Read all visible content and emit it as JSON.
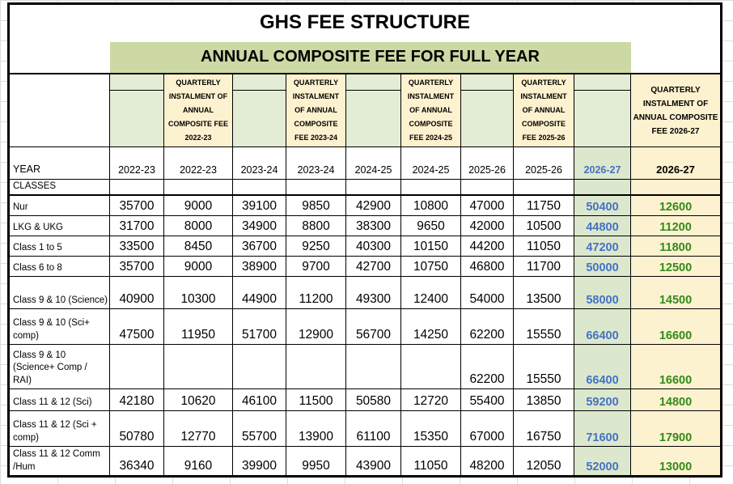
{
  "page": {
    "title": "GHS FEE STRUCTURE",
    "subtitle": "ANNUAL COMPOSITE FEE FOR FULL YEAR"
  },
  "table": {
    "year_row_label": "YEAR",
    "classes_row_label": "CLASSES",
    "columns": [
      {
        "year": "2022-23",
        "quarterly_header": "QUARTERLY INSTALMENT OF ANNUAL COMPOSITE FEE 2022-23"
      },
      {
        "year": "2023-24",
        "quarterly_header": "QUARTERLY INSTALMENT OF ANNUAL COMPOSITE FEE 2023-24"
      },
      {
        "year": "2024-25",
        "quarterly_header": "QUARTERLY INSTALMENT OF ANNUAL COMPOSITE FEE 2024-25"
      },
      {
        "year": "2025-26",
        "quarterly_header": "QUARTERLY INSTALMENT OF ANNUAL COMPOSITE FEE 2025-26"
      },
      {
        "year": "2026-27",
        "quarterly_header": "QUARTERLY INSTALMENT OF ANNUAL COMPOSITE FEE 2026-27"
      }
    ],
    "rows": [
      {
        "label": "Nur",
        "values": [
          "35700",
          "9000",
          "39100",
          "9850",
          "42900",
          "10800",
          "47000",
          "11750",
          "50400",
          "12600"
        ]
      },
      {
        "label": "LKG & UKG",
        "values": [
          "31700",
          "8000",
          "34900",
          "8800",
          "38300",
          "9650",
          "42000",
          "10500",
          "44800",
          "11200"
        ]
      },
      {
        "label": "Class 1 to 5",
        "values": [
          "33500",
          "8450",
          "36700",
          "9250",
          "40300",
          "10150",
          "44200",
          "11050",
          "47200",
          "11800"
        ]
      },
      {
        "label": "Class 6 to 8",
        "values": [
          "35700",
          "9000",
          "38900",
          "9700",
          "42700",
          "10750",
          "46800",
          "11700",
          "50000",
          "12500"
        ]
      },
      {
        "label": "Class 9 & 10 (Science)",
        "values": [
          "40900",
          "10300",
          "44900",
          "11200",
          "49300",
          "12400",
          "54000",
          "13500",
          "58000",
          "14500"
        ]
      },
      {
        "label": "Class 9 & 10 (Sci+ comp)",
        "values": [
          "47500",
          "11950",
          "51700",
          "12900",
          "56700",
          "14250",
          "62200",
          "15550",
          "66400",
          "16600"
        ]
      },
      {
        "label": "Class 9 & 10 (Science+ Comp / RAI)",
        "values": [
          "",
          "",
          "",
          "",
          "",
          "",
          "62200",
          "15550",
          "66400",
          "16600"
        ]
      },
      {
        "label": "Class 11 & 12 (Sci)",
        "values": [
          "42180",
          "10620",
          "46100",
          "11500",
          "50580",
          "12720",
          "55400",
          "13850",
          "59200",
          "14800"
        ]
      },
      {
        "label": "Class 11 & 12 (Sci + comp)",
        "values": [
          "50780",
          "12770",
          "55700",
          "13900",
          "61100",
          "15350",
          "67000",
          "16750",
          "71600",
          "17900"
        ]
      },
      {
        "label": "Class 11 & 12 Comm /Hum",
        "values": [
          "36340",
          "9160",
          "39900",
          "9950",
          "43900",
          "11050",
          "48200",
          "12050",
          "52000",
          "13000"
        ]
      }
    ]
  },
  "colors": {
    "banner_green": "#cdd9a5",
    "header_light_green": "#e3edd6",
    "highlight_column_green": "#dce8cd",
    "quarterly_cream": "#fdf2cf",
    "year_2026_27_text_blue": "#4472c4",
    "quarterly_2026_27_text_green": "#338a1a",
    "grid_black": "#000000",
    "margin_gridline_gray": "#dcdcdc"
  }
}
